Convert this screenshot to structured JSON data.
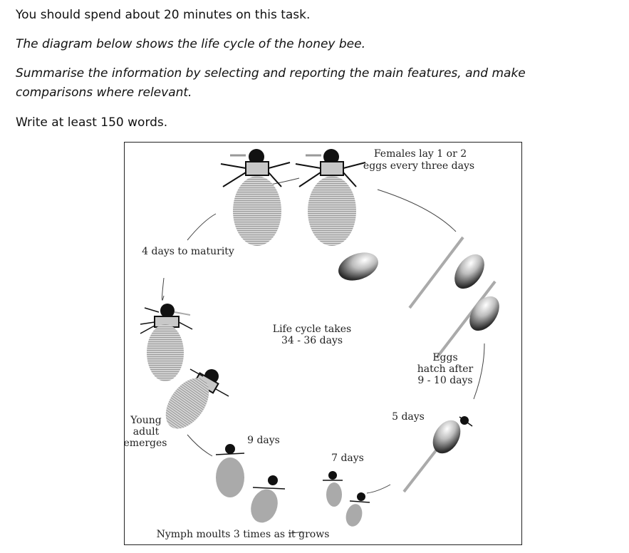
{
  "instructions": {
    "line1": "You should spend about 20 minutes on this task.",
    "line2": "The diagram below shows the life cycle of the honey bee.",
    "line3a": "Summarise the information by selecting and reporting the main features, and make",
    "line3b": "comparisons where relevant.",
    "line4": "Write at least 150 words."
  },
  "diagram": {
    "females_lay_1": "Females lay 1 or 2",
    "females_lay_2": "eggs every three days",
    "maturity": "4 days to maturity",
    "cycle_1": "Life cycle takes",
    "cycle_2": "34 - 36 days",
    "eggs_1": "Eggs",
    "eggs_2": "hatch after",
    "eggs_3": "9 - 10 days",
    "five_days": "5 days",
    "young_1": "Young",
    "young_2": "adult",
    "young_3": "emerges",
    "nine_days": "9 days",
    "seven_days": "7 days",
    "nymph": "Nymph moults 3 times as it grows"
  }
}
